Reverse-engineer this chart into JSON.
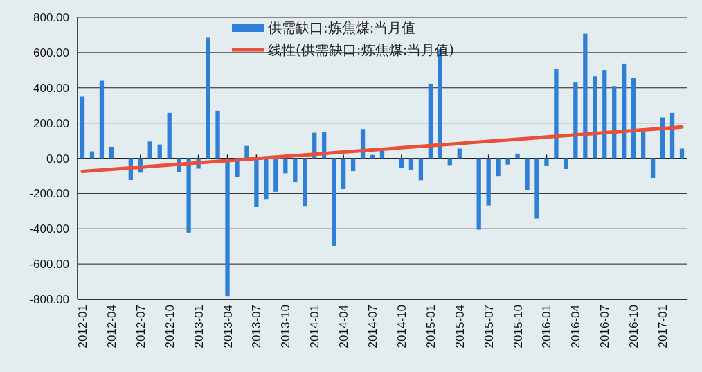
{
  "chart_data": {
    "type": "bar",
    "categories": [
      "2012-01",
      null,
      null,
      "2012-04",
      null,
      null,
      "2012-07",
      null,
      null,
      "2012-10",
      null,
      null,
      "2013-01",
      null,
      null,
      "2013-04",
      null,
      null,
      "2013-07",
      null,
      null,
      "2013-10",
      null,
      null,
      "2014-01",
      null,
      null,
      "2014-04",
      null,
      null,
      "2014-07",
      null,
      null,
      "2014-10",
      null,
      null,
      "2015-01",
      null,
      null,
      "2015-04",
      null,
      null,
      "2015-07",
      null,
      null,
      "2015-10",
      null,
      null,
      "2016-01",
      null,
      null,
      "2016-04",
      null,
      null,
      "2016-07",
      null,
      null,
      "2016-10",
      null,
      null,
      "2017-01",
      null,
      null
    ],
    "series": [
      {
        "name": "供需缺口:炼焦煤:当月值",
        "color": "#2f7fd6",
        "values": [
          350,
          39,
          440,
          65,
          0,
          -124,
          -82,
          95,
          78,
          258,
          -78,
          -422,
          -59,
          684,
          270,
          -785,
          -108,
          70,
          -277,
          -231,
          -190,
          -86,
          -136,
          -274,
          145,
          148,
          -497,
          -175,
          -73,
          166,
          18,
          42,
          0,
          -55,
          -65,
          -125,
          423,
          618,
          -39,
          55,
          0,
          -405,
          -268,
          -101,
          -36,
          26,
          -179,
          -342,
          -41,
          505,
          -61,
          430,
          707,
          465,
          501,
          410,
          537,
          455,
          152,
          -112,
          232,
          258,
          55
        ]
      },
      {
        "name": "线性(供需缺口:炼焦煤:当月值)",
        "type": "line",
        "color": "#e8503a",
        "values": [
          -75,
          -71,
          -67,
          -63,
          -59,
          -55,
          -51,
          -46,
          -42,
          -38,
          -34,
          -30,
          -26,
          -22,
          -18,
          -14,
          -10,
          -6,
          -2,
          3,
          7,
          11,
          15,
          19,
          23,
          27,
          31,
          35,
          39,
          43,
          47,
          51,
          55,
          60,
          64,
          68,
          72,
          76,
          80,
          84,
          88,
          92,
          96,
          100,
          104,
          108,
          112,
          116,
          121,
          125,
          129,
          133,
          137,
          141,
          145,
          149,
          153,
          157,
          161,
          165,
          169,
          173,
          178
        ]
      }
    ],
    "ylim": [
      -800,
      800
    ],
    "yticks": [
      {
        "value": -800,
        "label": "-800.00"
      },
      {
        "value": -600,
        "label": "-600.00"
      },
      {
        "value": -400,
        "label": "-400.00"
      },
      {
        "value": -200,
        "label": "-200.00"
      },
      {
        "value": 0,
        "label": "0.00"
      },
      {
        "value": 200,
        "label": "200.00"
      },
      {
        "value": 400,
        "label": "400.00"
      },
      {
        "value": 600,
        "label": "600.00"
      },
      {
        "value": 800,
        "label": "800.00"
      }
    ],
    "grid": "y",
    "legend": "top"
  }
}
